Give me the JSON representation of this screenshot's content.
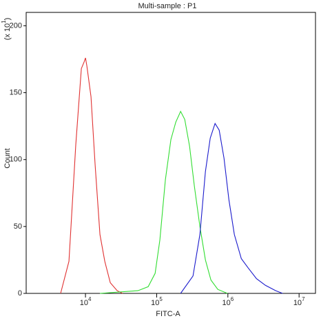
{
  "chart_data": {
    "type": "line",
    "title": "Multi-sample : P1",
    "x_label": "FITC-A",
    "y_label": "Count",
    "y_multiplier": "(x 10^1)",
    "x_scale": "log",
    "xlim": [
      1470,
      17000000
    ],
    "ylim": [
      0,
      210
    ],
    "xticks": [
      {
        "value": 10000,
        "label": "10^4"
      },
      {
        "value": 100000,
        "label": "10^5"
      },
      {
        "value": 1000000,
        "label": "10^6"
      },
      {
        "value": 10000000,
        "label": "10^7"
      }
    ],
    "yticks": [
      0,
      50,
      100,
      150,
      200
    ],
    "series": [
      {
        "color": "#e03030",
        "x": [
          4480,
          5860,
          7310,
          8750,
          9560,
          10000,
          10460,
          11950,
          13670,
          15960,
          18660,
          22290,
          27850,
          33330
        ],
        "values": [
          0,
          24,
          111,
          168,
          173,
          176,
          170,
          147,
          96,
          44,
          24,
          8,
          2,
          0
        ]
      },
      {
        "color": "#30dd30",
        "x": [
          15960,
          54450,
          76030,
          95040,
          111000,
          132700,
          158600,
          185400,
          216700,
          247700,
          289600,
          338600,
          404700,
          483600,
          578000,
          722400,
          986600
        ],
        "values": [
          0,
          2,
          5,
          15,
          40,
          85,
          115,
          128,
          136,
          130,
          110,
          80,
          50,
          25,
          10,
          3,
          0
        ]
      },
      {
        "color": "#1a1acc",
        "x": [
          216700,
          323600,
          404700,
          483600,
          564900,
          660700,
          755100,
          883100,
          1033000,
          1234000,
          1542000,
          1928000,
          2518000,
          3365000,
          4699000,
          5875000
        ],
        "values": [
          0,
          13,
          44,
          91,
          116,
          127,
          122,
          101,
          70,
          44,
          26,
          19,
          11,
          6,
          2,
          0
        ]
      }
    ]
  }
}
